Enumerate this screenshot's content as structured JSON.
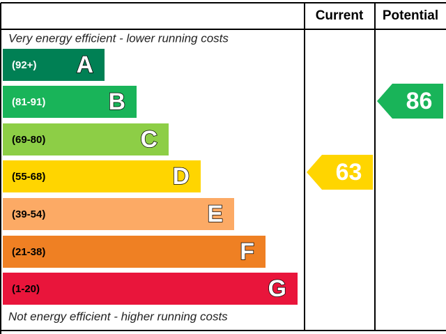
{
  "header": {
    "current": "Current",
    "potential": "Potential"
  },
  "top_note": "Very energy efficient - lower running costs",
  "bottom_note": "Not energy efficient - higher running costs",
  "bands": [
    {
      "range": "(92+)",
      "letter": "A",
      "color": "#008054"
    },
    {
      "range": "(81-91)",
      "letter": "B",
      "color": "#19b459"
    },
    {
      "range": "(69-80)",
      "letter": "C",
      "color": "#8dce46"
    },
    {
      "range": "(55-68)",
      "letter": "D",
      "color": "#ffd500"
    },
    {
      "range": "(39-54)",
      "letter": "E",
      "color": "#fcaa65"
    },
    {
      "range": "(21-38)",
      "letter": "F",
      "color": "#ef8023"
    },
    {
      "range": "(1-20)",
      "letter": "G",
      "color": "#e9153b"
    }
  ],
  "current": {
    "value": 63,
    "color": "#ffd500"
  },
  "potential": {
    "value": 86,
    "color": "#19b459"
  }
}
